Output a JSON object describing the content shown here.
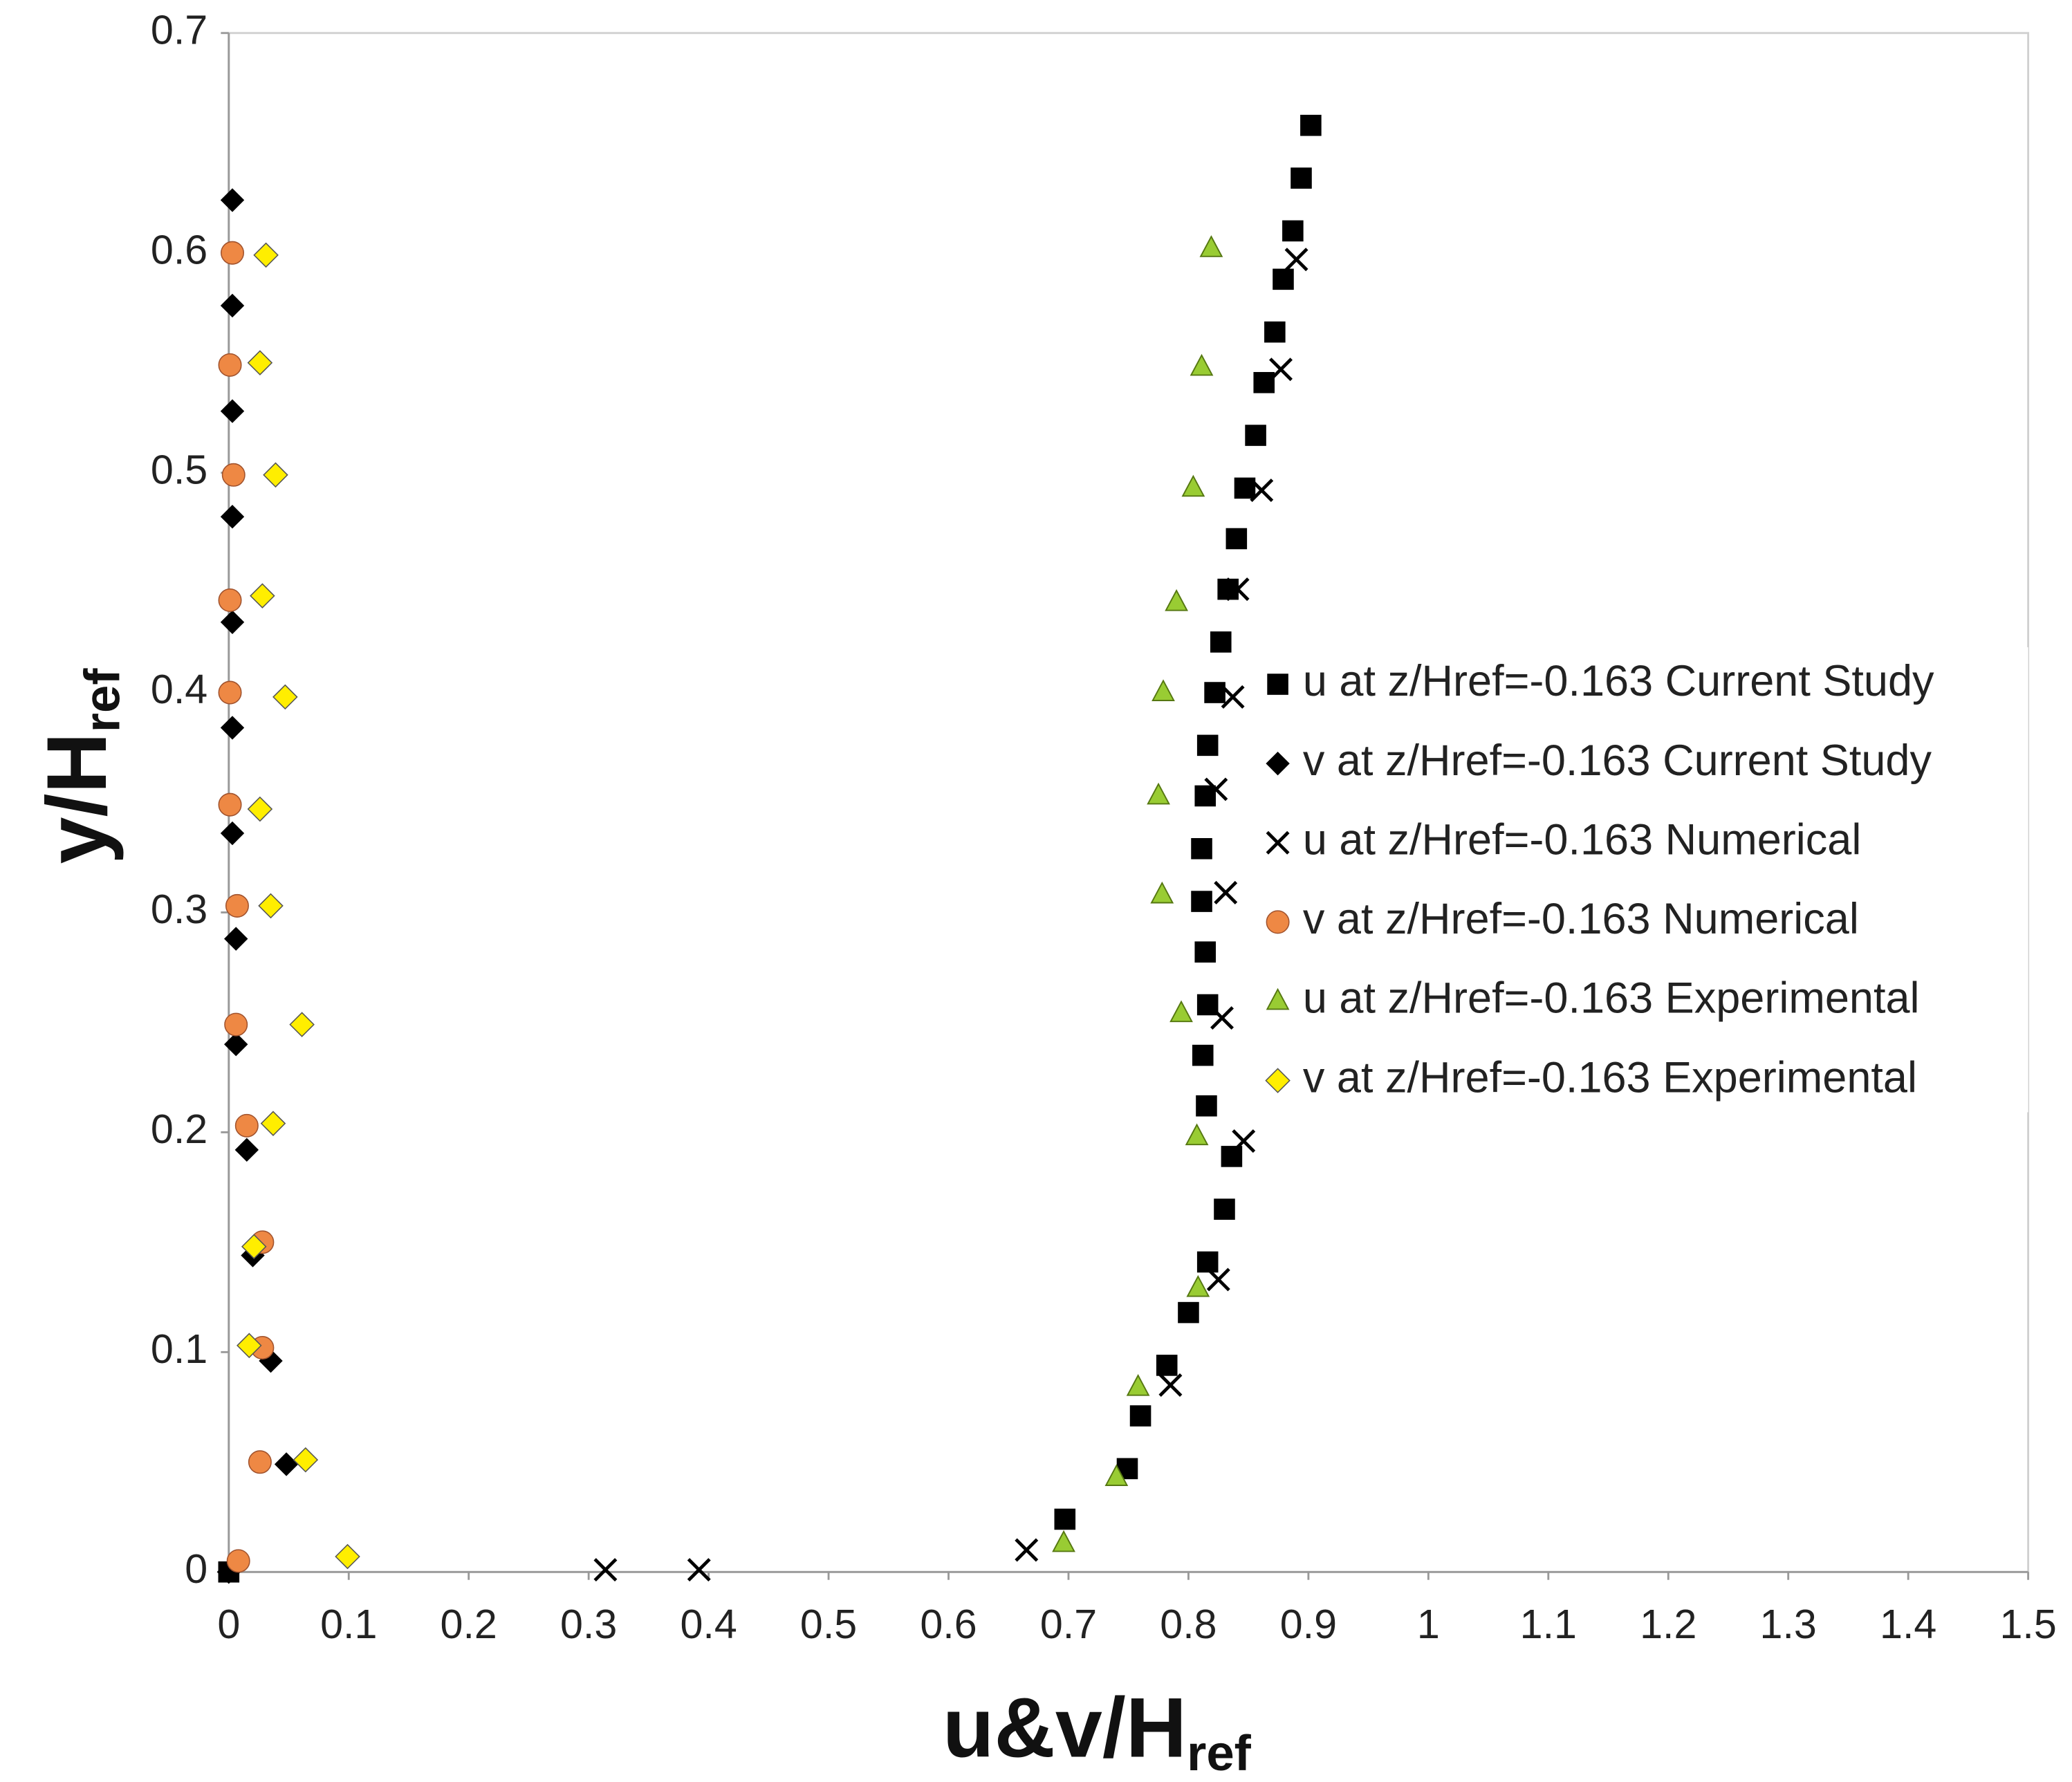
{
  "chart_data": {
    "type": "scatter",
    "xlabel": {
      "main": "u&v/H",
      "sub": "ref"
    },
    "ylabel": {
      "main": "y/H",
      "sub": "ref"
    },
    "xlim": [
      0,
      1.5
    ],
    "ylim": [
      0,
      0.7
    ],
    "xticks": [
      0,
      0.1,
      0.2,
      0.3,
      0.4,
      0.5,
      0.6,
      0.7,
      0.8,
      0.9,
      1,
      1.1,
      1.2,
      1.3,
      1.4,
      1.5
    ],
    "yticks": [
      0,
      0.1,
      0.2,
      0.3,
      0.4,
      0.5,
      0.6,
      0.7
    ],
    "grid": false,
    "legend": "right",
    "series": [
      {
        "name": "u at z/Href=-0.163 Current Study",
        "marker": "square",
        "color": "#000000",
        "x": [
          0.902,
          0.894,
          0.887,
          0.879,
          0.872,
          0.863,
          0.856,
          0.847,
          0.84,
          0.833,
          0.827,
          0.822,
          0.816,
          0.814,
          0.811,
          0.811,
          0.814,
          0.816,
          0.812,
          0.815,
          0.836,
          0.83,
          0.816,
          0.8,
          0.782,
          0.76,
          0.749,
          0.697,
          0
        ],
        "y": [
          0.658,
          0.634,
          0.61,
          0.588,
          0.564,
          0.541,
          0.517,
          0.493,
          0.47,
          0.447,
          0.423,
          0.4,
          0.376,
          0.353,
          0.329,
          0.305,
          0.282,
          0.258,
          0.235,
          0.212,
          0.189,
          0.165,
          0.141,
          0.118,
          0.094,
          0.071,
          0.047,
          0.024,
          0
        ]
      },
      {
        "name": "v at z/Href=-0.163 Current Study",
        "marker": "diamond",
        "color": "#000000",
        "x": [
          0.003,
          0.003,
          0.003,
          0.003,
          0.003,
          0.003,
          0.003,
          0.006,
          0.006,
          0.015,
          0.02,
          0.035,
          0.048,
          0
        ],
        "y": [
          0.624,
          0.576,
          0.528,
          0.48,
          0.432,
          0.384,
          0.336,
          0.288,
          0.24,
          0.192,
          0.144,
          0.096,
          0.049,
          0
        ]
      },
      {
        "name": "u at z/Href=-0.163 Numerical",
        "marker": "cross",
        "color": "#000000",
        "x": [
          0.89,
          0.877,
          0.861,
          0.841,
          0.837,
          0.823,
          0.831,
          0.828,
          0.846,
          0.825,
          0.785,
          0.665,
          0.392,
          0.314
        ],
        "y": [
          0.597,
          0.547,
          0.492,
          0.447,
          0.398,
          0.356,
          0.309,
          0.252,
          0.196,
          0.133,
          0.085,
          0.01,
          0.001,
          0.001
        ]
      },
      {
        "name": "v at z/Href=-0.163 Numerical",
        "marker": "circle",
        "color": "#ee8844",
        "x": [
          0.003,
          0.001,
          0.004,
          0.001,
          0.001,
          0.001,
          0.007,
          0.006,
          0.015,
          0.028,
          0.028,
          0.026,
          0.008
        ],
        "y": [
          0.6,
          0.549,
          0.499,
          0.442,
          0.4,
          0.349,
          0.303,
          0.249,
          0.203,
          0.15,
          0.102,
          0.05,
          0.005
        ]
      },
      {
        "name": "u at z/Href=-0.163 Experimental",
        "marker": "triangle",
        "color": "#99cc33",
        "x": [
          0.819,
          0.811,
          0.804,
          0.79,
          0.779,
          0.775,
          0.778,
          0.794,
          0.807,
          0.808,
          0.758,
          0.74,
          0.696
        ],
        "y": [
          0.602,
          0.548,
          0.493,
          0.441,
          0.4,
          0.353,
          0.308,
          0.254,
          0.198,
          0.129,
          0.084,
          0.043,
          0.013
        ]
      },
      {
        "name": "v at z/Href=-0.163 Experimental",
        "marker": "diamond",
        "color": "#ffee00",
        "x": [
          0.031,
          0.026,
          0.039,
          0.028,
          0.047,
          0.026,
          0.035,
          0.061,
          0.037,
          0.021,
          0.017,
          0.064,
          0.099
        ],
        "y": [
          0.599,
          0.55,
          0.499,
          0.444,
          0.398,
          0.347,
          0.303,
          0.249,
          0.204,
          0.148,
          0.103,
          0.051,
          0.007
        ]
      }
    ]
  }
}
